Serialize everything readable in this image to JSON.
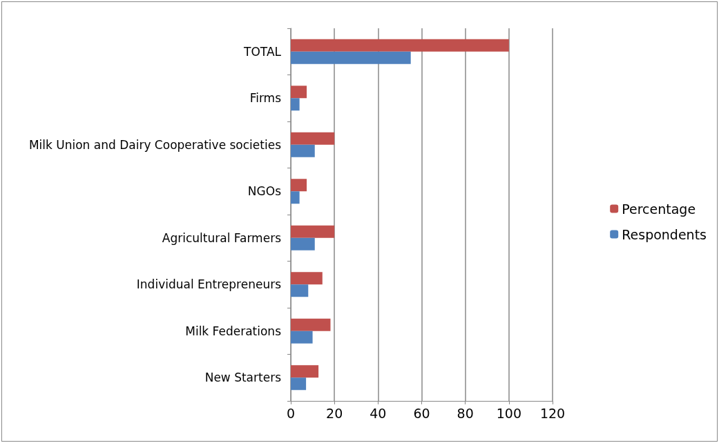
{
  "chart_data": {
    "type": "bar",
    "orientation": "horizontal",
    "categories": [
      "TOTAL",
      "Firms",
      "Milk Union and Dairy Cooperative societies",
      "NGOs",
      "Agricultural Farmers",
      "Individual Entrepreneurs",
      "Milk Federations",
      "New Starters"
    ],
    "series": [
      {
        "name": "Percentage",
        "color": "#c0504d",
        "values": [
          100,
          7.3,
          20,
          7.3,
          20,
          14.5,
          18.2,
          12.7
        ]
      },
      {
        "name": "Respondents",
        "color": "#4f81bd",
        "values": [
          55,
          4,
          11,
          4,
          11,
          8,
          10,
          7
        ]
      }
    ],
    "xlim": [
      0,
      120
    ],
    "xticks": [
      0,
      20,
      40,
      60,
      80,
      100,
      120
    ],
    "grid": "x",
    "legend": "right"
  }
}
